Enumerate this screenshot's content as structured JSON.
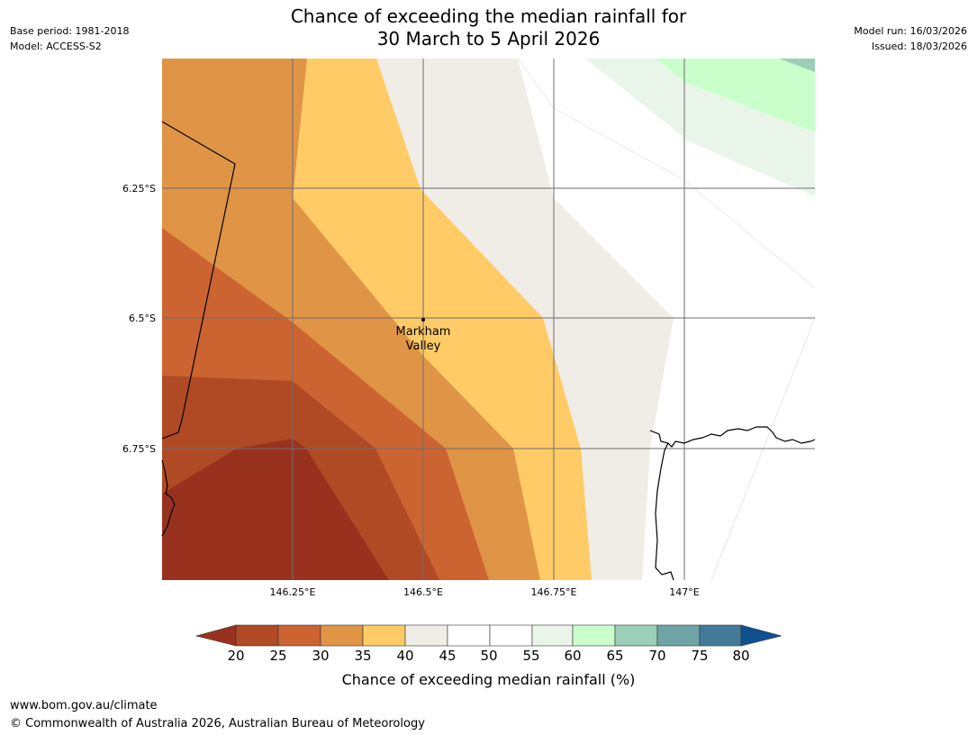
{
  "header": {
    "title_line1": "Chance of exceeding the median rainfall for",
    "title_line2": "30 March to 5 April 2026",
    "base_period": "Base period: 1981-2018",
    "model": "Model: ACCESS-S2",
    "model_run": "Model run: 16/03/2026",
    "issued": "Issued: 18/03/2026"
  },
  "map": {
    "lat_labels": [
      "6.25°S",
      "6.5°S",
      "6.75°S"
    ],
    "lon_labels": [
      "146.25°E",
      "146.5°E",
      "146.75°E",
      "147°E"
    ],
    "place": {
      "name_line1": "Markham",
      "name_line2": "Valley",
      "lat": -6.5,
      "lon": 146.5
    }
  },
  "colorbar": {
    "ticks": [
      "20",
      "25",
      "30",
      "35",
      "40",
      "45",
      "50",
      "55",
      "60",
      "65",
      "70",
      "75",
      "80"
    ],
    "colors": {
      "below20": "#98321f",
      "20-25": "#b04a24",
      "25-30": "#cc6431",
      "30-35": "#e09446",
      "35-40": "#fecb66",
      "40-45": "#f0ece6",
      "45-50": "#ffffff",
      "50-55": "#ffffff",
      "55-60": "#eaf5ea",
      "60-65": "#caffcb",
      "65-70": "#9ccfb7",
      "70-75": "#6fa3a4",
      "75-80": "#437a99",
      "above80": "#11508f"
    },
    "label": "Chance of exceeding median rainfall (%)"
  },
  "footer": {
    "url": "www.bom.gov.au/climate",
    "copyright": "© Commonwealth of Australia 2026, Australian Bureau of Meteorology"
  }
}
